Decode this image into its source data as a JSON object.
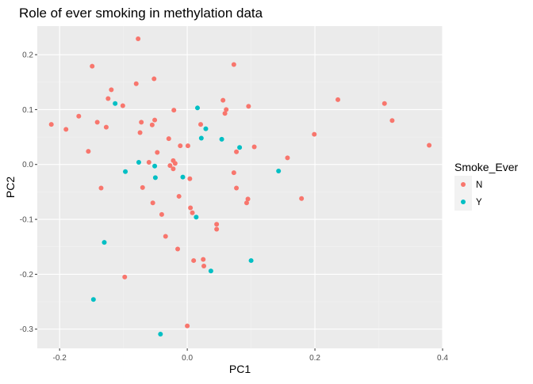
{
  "colors": {
    "panel_background": "#EBEBEB",
    "grid_major": "#FFFFFF",
    "grid_minor": "#F2F2F2",
    "series_N": "#F8766D",
    "series_Y": "#00BFC4",
    "text": "#000000",
    "tick_text": "#4D4D4D"
  },
  "chart_data": {
    "type": "scatter",
    "title": "Role of ever smoking in methylation data",
    "xlabel": "PC1",
    "ylabel": "PC2",
    "xlim": [
      -0.235,
      0.4
    ],
    "ylim": [
      -0.335,
      0.252
    ],
    "xticks": [
      -0.2,
      0.0,
      0.2,
      0.4
    ],
    "yticks": [
      -0.3,
      -0.2,
      -0.1,
      0.0,
      0.1,
      0.2
    ],
    "xtick_labels": [
      "-0.2",
      "0.0",
      "0.2",
      "0.4"
    ],
    "ytick_labels": [
      "-0.3",
      "-0.2",
      "-0.1",
      "0.0",
      "0.1",
      "0.2"
    ],
    "grid": true,
    "legend": {
      "title": "Smoke_Ever",
      "position": "right",
      "entries": [
        "N",
        "Y"
      ]
    },
    "series": [
      {
        "name": "N",
        "color": "#F8766D",
        "points": [
          [
            -0.213,
            0.073
          ],
          [
            -0.19,
            0.064
          ],
          [
            -0.17,
            0.088
          ],
          [
            -0.155,
            0.024
          ],
          [
            -0.149,
            0.179
          ],
          [
            -0.141,
            0.077
          ],
          [
            -0.135,
            -0.043
          ],
          [
            -0.127,
            0.068
          ],
          [
            -0.124,
            0.12
          ],
          [
            -0.119,
            0.136
          ],
          [
            -0.101,
            0.107
          ],
          [
            -0.098,
            -0.205
          ],
          [
            -0.08,
            0.147
          ],
          [
            -0.077,
            0.229
          ],
          [
            -0.074,
            0.058
          ],
          [
            -0.072,
            0.077
          ],
          [
            -0.07,
            -0.042
          ],
          [
            -0.06,
            0.004
          ],
          [
            -0.055,
            0.072
          ],
          [
            -0.054,
            -0.07
          ],
          [
            -0.052,
            0.156
          ],
          [
            -0.051,
            0.081
          ],
          [
            -0.047,
            0.022
          ],
          [
            -0.04,
            -0.091
          ],
          [
            -0.034,
            -0.131
          ],
          [
            -0.029,
            0.047
          ],
          [
            -0.027,
            -0.002
          ],
          [
            -0.022,
            0.007
          ],
          [
            -0.022,
            -0.008
          ],
          [
            -0.021,
            0.099
          ],
          [
            -0.019,
            0.002
          ],
          [
            -0.015,
            -0.154
          ],
          [
            -0.013,
            -0.058
          ],
          [
            -0.011,
            0.034
          ],
          [
            0.0,
            -0.294
          ],
          [
            0.001,
            0.034
          ],
          [
            0.004,
            -0.026
          ],
          [
            0.005,
            -0.079
          ],
          [
            0.008,
            -0.088
          ],
          [
            0.01,
            -0.175
          ],
          [
            0.021,
            0.073
          ],
          [
            0.025,
            -0.173
          ],
          [
            0.026,
            -0.185
          ],
          [
            0.046,
            -0.109
          ],
          [
            0.046,
            -0.118
          ],
          [
            0.056,
            0.117
          ],
          [
            0.059,
            0.093
          ],
          [
            0.061,
            0.1
          ],
          [
            0.073,
            0.182
          ],
          [
            0.073,
            -0.015
          ],
          [
            0.077,
            0.023
          ],
          [
            0.077,
            -0.043
          ],
          [
            0.093,
            -0.07
          ],
          [
            0.095,
            -0.063
          ],
          [
            0.096,
            0.106
          ],
          [
            0.105,
            0.032
          ],
          [
            0.157,
            0.012
          ],
          [
            0.179,
            -0.062
          ],
          [
            0.199,
            0.055
          ],
          [
            0.236,
            0.118
          ],
          [
            0.309,
            0.111
          ],
          [
            0.321,
            0.08
          ],
          [
            0.379,
            0.035
          ]
        ]
      },
      {
        "name": "Y",
        "color": "#00BFC4",
        "points": [
          [
            -0.147,
            -0.246
          ],
          [
            -0.13,
            -0.142
          ],
          [
            -0.113,
            0.111
          ],
          [
            -0.097,
            -0.013
          ],
          [
            -0.076,
            0.004
          ],
          [
            -0.051,
            -0.003
          ],
          [
            -0.05,
            -0.024
          ],
          [
            -0.042,
            -0.309
          ],
          [
            -0.007,
            -0.023
          ],
          [
            0.014,
            -0.096
          ],
          [
            0.016,
            0.103
          ],
          [
            0.022,
            0.048
          ],
          [
            0.029,
            0.065
          ],
          [
            0.037,
            -0.194
          ],
          [
            0.054,
            0.046
          ],
          [
            0.082,
            0.031
          ],
          [
            0.1,
            -0.175
          ],
          [
            0.143,
            -0.012
          ]
        ]
      }
    ]
  }
}
